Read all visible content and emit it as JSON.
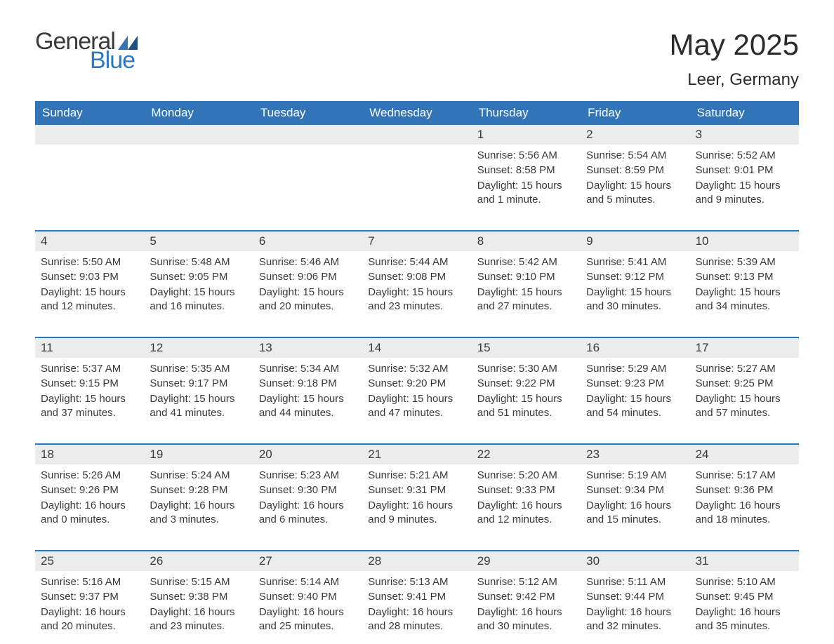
{
  "logo": {
    "text1": "General",
    "text2": "Blue"
  },
  "title": "May 2025",
  "location": "Leer, Germany",
  "colors": {
    "headerBg": "#3274b8",
    "headerText": "#ffffff",
    "dateBg": "#ececec",
    "text": "#3a3a3a",
    "accent": "#2f78bf",
    "pageBg": "#ffffff",
    "weekBorder": "#3274b8"
  },
  "dayNames": [
    "Sunday",
    "Monday",
    "Tuesday",
    "Wednesday",
    "Thursday",
    "Friday",
    "Saturday"
  ],
  "weeks": [
    [
      null,
      null,
      null,
      null,
      {
        "date": "1",
        "sunrise": "Sunrise: 5:56 AM",
        "sunset": "Sunset: 8:58 PM",
        "daylight": "Daylight: 15 hours and 1 minute."
      },
      {
        "date": "2",
        "sunrise": "Sunrise: 5:54 AM",
        "sunset": "Sunset: 8:59 PM",
        "daylight": "Daylight: 15 hours and 5 minutes."
      },
      {
        "date": "3",
        "sunrise": "Sunrise: 5:52 AM",
        "sunset": "Sunset: 9:01 PM",
        "daylight": "Daylight: 15 hours and 9 minutes."
      }
    ],
    [
      {
        "date": "4",
        "sunrise": "Sunrise: 5:50 AM",
        "sunset": "Sunset: 9:03 PM",
        "daylight": "Daylight: 15 hours and 12 minutes."
      },
      {
        "date": "5",
        "sunrise": "Sunrise: 5:48 AM",
        "sunset": "Sunset: 9:05 PM",
        "daylight": "Daylight: 15 hours and 16 minutes."
      },
      {
        "date": "6",
        "sunrise": "Sunrise: 5:46 AM",
        "sunset": "Sunset: 9:06 PM",
        "daylight": "Daylight: 15 hours and 20 minutes."
      },
      {
        "date": "7",
        "sunrise": "Sunrise: 5:44 AM",
        "sunset": "Sunset: 9:08 PM",
        "daylight": "Daylight: 15 hours and 23 minutes."
      },
      {
        "date": "8",
        "sunrise": "Sunrise: 5:42 AM",
        "sunset": "Sunset: 9:10 PM",
        "daylight": "Daylight: 15 hours and 27 minutes."
      },
      {
        "date": "9",
        "sunrise": "Sunrise: 5:41 AM",
        "sunset": "Sunset: 9:12 PM",
        "daylight": "Daylight: 15 hours and 30 minutes."
      },
      {
        "date": "10",
        "sunrise": "Sunrise: 5:39 AM",
        "sunset": "Sunset: 9:13 PM",
        "daylight": "Daylight: 15 hours and 34 minutes."
      }
    ],
    [
      {
        "date": "11",
        "sunrise": "Sunrise: 5:37 AM",
        "sunset": "Sunset: 9:15 PM",
        "daylight": "Daylight: 15 hours and 37 minutes."
      },
      {
        "date": "12",
        "sunrise": "Sunrise: 5:35 AM",
        "sunset": "Sunset: 9:17 PM",
        "daylight": "Daylight: 15 hours and 41 minutes."
      },
      {
        "date": "13",
        "sunrise": "Sunrise: 5:34 AM",
        "sunset": "Sunset: 9:18 PM",
        "daylight": "Daylight: 15 hours and 44 minutes."
      },
      {
        "date": "14",
        "sunrise": "Sunrise: 5:32 AM",
        "sunset": "Sunset: 9:20 PM",
        "daylight": "Daylight: 15 hours and 47 minutes."
      },
      {
        "date": "15",
        "sunrise": "Sunrise: 5:30 AM",
        "sunset": "Sunset: 9:22 PM",
        "daylight": "Daylight: 15 hours and 51 minutes."
      },
      {
        "date": "16",
        "sunrise": "Sunrise: 5:29 AM",
        "sunset": "Sunset: 9:23 PM",
        "daylight": "Daylight: 15 hours and 54 minutes."
      },
      {
        "date": "17",
        "sunrise": "Sunrise: 5:27 AM",
        "sunset": "Sunset: 9:25 PM",
        "daylight": "Daylight: 15 hours and 57 minutes."
      }
    ],
    [
      {
        "date": "18",
        "sunrise": "Sunrise: 5:26 AM",
        "sunset": "Sunset: 9:26 PM",
        "daylight": "Daylight: 16 hours and 0 minutes."
      },
      {
        "date": "19",
        "sunrise": "Sunrise: 5:24 AM",
        "sunset": "Sunset: 9:28 PM",
        "daylight": "Daylight: 16 hours and 3 minutes."
      },
      {
        "date": "20",
        "sunrise": "Sunrise: 5:23 AM",
        "sunset": "Sunset: 9:30 PM",
        "daylight": "Daylight: 16 hours and 6 minutes."
      },
      {
        "date": "21",
        "sunrise": "Sunrise: 5:21 AM",
        "sunset": "Sunset: 9:31 PM",
        "daylight": "Daylight: 16 hours and 9 minutes."
      },
      {
        "date": "22",
        "sunrise": "Sunrise: 5:20 AM",
        "sunset": "Sunset: 9:33 PM",
        "daylight": "Daylight: 16 hours and 12 minutes."
      },
      {
        "date": "23",
        "sunrise": "Sunrise: 5:19 AM",
        "sunset": "Sunset: 9:34 PM",
        "daylight": "Daylight: 16 hours and 15 minutes."
      },
      {
        "date": "24",
        "sunrise": "Sunrise: 5:17 AM",
        "sunset": "Sunset: 9:36 PM",
        "daylight": "Daylight: 16 hours and 18 minutes."
      }
    ],
    [
      {
        "date": "25",
        "sunrise": "Sunrise: 5:16 AM",
        "sunset": "Sunset: 9:37 PM",
        "daylight": "Daylight: 16 hours and 20 minutes."
      },
      {
        "date": "26",
        "sunrise": "Sunrise: 5:15 AM",
        "sunset": "Sunset: 9:38 PM",
        "daylight": "Daylight: 16 hours and 23 minutes."
      },
      {
        "date": "27",
        "sunrise": "Sunrise: 5:14 AM",
        "sunset": "Sunset: 9:40 PM",
        "daylight": "Daylight: 16 hours and 25 minutes."
      },
      {
        "date": "28",
        "sunrise": "Sunrise: 5:13 AM",
        "sunset": "Sunset: 9:41 PM",
        "daylight": "Daylight: 16 hours and 28 minutes."
      },
      {
        "date": "29",
        "sunrise": "Sunrise: 5:12 AM",
        "sunset": "Sunset: 9:42 PM",
        "daylight": "Daylight: 16 hours and 30 minutes."
      },
      {
        "date": "30",
        "sunrise": "Sunrise: 5:11 AM",
        "sunset": "Sunset: 9:44 PM",
        "daylight": "Daylight: 16 hours and 32 minutes."
      },
      {
        "date": "31",
        "sunrise": "Sunrise: 5:10 AM",
        "sunset": "Sunset: 9:45 PM",
        "daylight": "Daylight: 16 hours and 35 minutes."
      }
    ]
  ]
}
